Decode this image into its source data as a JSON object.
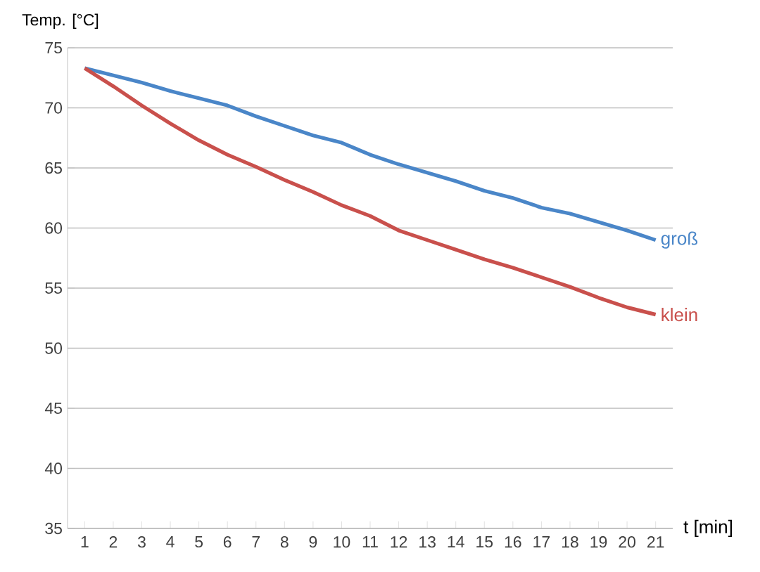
{
  "chart_data": {
    "type": "line",
    "xlabel": "t [min]",
    "ylabel": "Temp. [°C]",
    "categories": [
      "1",
      "2",
      "3",
      "4",
      "5",
      "6",
      "7",
      "8",
      "9",
      "10",
      "11",
      "12",
      "13",
      "14",
      "15",
      "16",
      "17",
      "18",
      "19",
      "20",
      "21"
    ],
    "series": [
      {
        "name": "groß",
        "color": "#4a86c8",
        "values": [
          73.3,
          72.7,
          72.1,
          71.4,
          70.8,
          70.2,
          69.3,
          68.5,
          67.7,
          67.1,
          66.1,
          65.3,
          64.6,
          63.9,
          63.1,
          62.5,
          61.7,
          61.2,
          60.5,
          59.8,
          59.0
        ]
      },
      {
        "name": "klein",
        "color": "#c9504c",
        "values": [
          73.3,
          71.8,
          70.2,
          68.7,
          67.3,
          66.1,
          65.1,
          64.0,
          63.0,
          61.9,
          61.0,
          59.8,
          59.0,
          58.2,
          57.4,
          56.7,
          55.9,
          55.1,
          54.2,
          53.4,
          52.8
        ]
      }
    ],
    "ylim": [
      35,
      75
    ],
    "yticks": [
      35,
      40,
      45,
      50,
      55,
      60,
      65,
      70,
      75
    ],
    "grid": "y",
    "legend": false,
    "marker": "none",
    "line_style": "solid"
  }
}
